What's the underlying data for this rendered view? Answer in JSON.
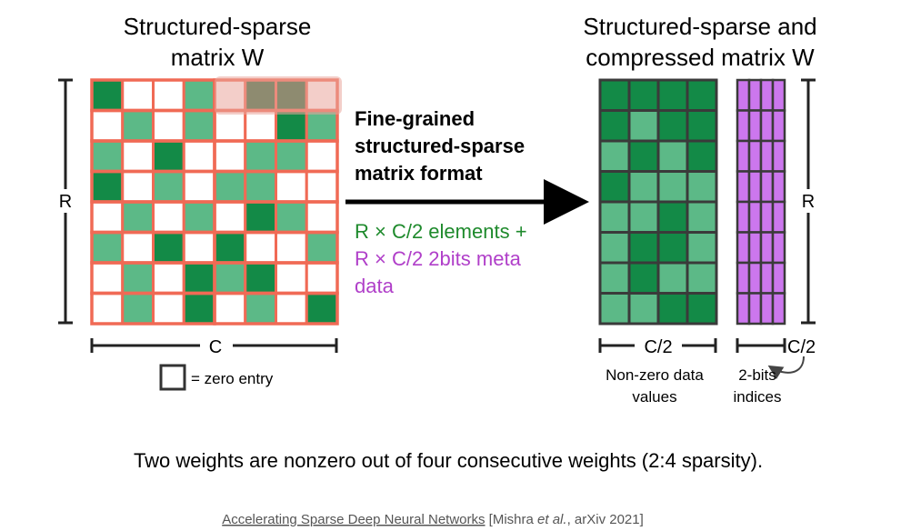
{
  "left_title": [
    "Structured-sparse",
    "matrix W"
  ],
  "right_title": [
    "Structured-sparse and",
    "compressed matrix W"
  ],
  "dims": {
    "R": "R",
    "C": "C",
    "C_half": "C/2"
  },
  "legend_zero_entry": "= zero entry",
  "arrow_label": [
    "Fine-grained",
    "structured-sparse",
    "matrix format"
  ],
  "elements_line": "R × C/2 elements +",
  "meta_lines": [
    "R × C/2 2bits meta",
    "data"
  ],
  "nonzero_caption": [
    "Non-zero data",
    "values"
  ],
  "indices_caption": [
    "2-bits",
    "indices"
  ],
  "summary": "Two weights are nonzero out of four consecutive weights (2:4 sparsity).",
  "citation": {
    "link": "Accelerating Sparse Deep Neural Networks",
    "pre": " [Mishra ",
    "etal": "et al.",
    "post": ", arXiv 2021]"
  },
  "colors": {
    "grid_border": "#f06a55",
    "highlight": "#e9a59c",
    "dense_border": "#3a3a3a",
    "index_purple": "#cc77ee",
    "green_text": "#1e8a2c",
    "purple_text": "#b03fc9"
  },
  "sparse_matrix": [
    [
      2,
      0,
      0,
      1,
      0,
      3,
      3,
      0
    ],
    [
      0,
      1,
      0,
      1,
      0,
      0,
      2,
      1
    ],
    [
      1,
      0,
      2,
      0,
      0,
      1,
      1,
      0
    ],
    [
      2,
      0,
      1,
      0,
      1,
      1,
      0,
      0
    ],
    [
      0,
      1,
      0,
      1,
      0,
      2,
      1,
      0
    ],
    [
      1,
      0,
      2,
      0,
      2,
      0,
      0,
      1
    ],
    [
      0,
      1,
      0,
      2,
      1,
      2,
      0,
      0
    ],
    [
      0,
      1,
      0,
      2,
      0,
      1,
      0,
      2
    ]
  ],
  "dense_matrix": [
    [
      2,
      2,
      2,
      2
    ],
    [
      2,
      1,
      2,
      2
    ],
    [
      1,
      2,
      1,
      2
    ],
    [
      2,
      1,
      1,
      1
    ],
    [
      1,
      1,
      2,
      1
    ],
    [
      1,
      2,
      2,
      1
    ],
    [
      1,
      2,
      1,
      1
    ],
    [
      1,
      1,
      2,
      2
    ]
  ],
  "shade_colors": [
    "#ffffff",
    "#5cb987",
    "#138a47",
    "#1f6a3b"
  ]
}
